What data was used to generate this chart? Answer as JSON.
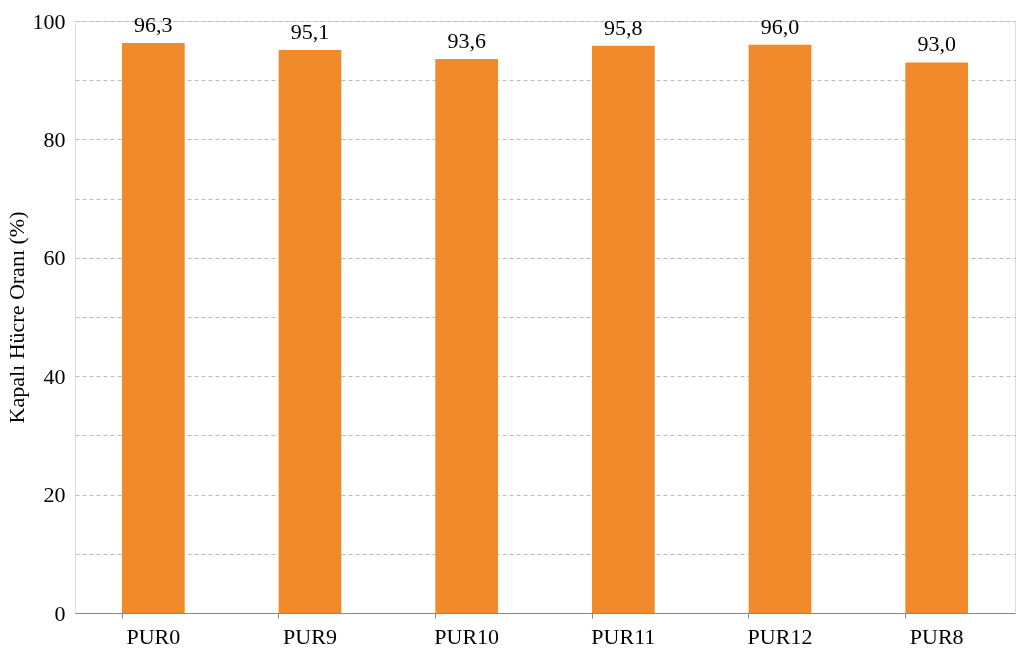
{
  "chart_data": {
    "type": "bar",
    "ylabel": "Kapalı Hücre Oranı (%)",
    "categories": [
      "PUR0",
      "PUR9",
      "PUR10",
      "PUR11",
      "PUR12",
      "PUR8"
    ],
    "values": [
      96.3,
      95.1,
      93.6,
      95.8,
      96.0,
      93.0
    ],
    "value_labels": [
      "96,3",
      "95,1",
      "93,6",
      "95,8",
      "96,0",
      "93,0"
    ],
    "color": "#f18a2a",
    "ylim": [
      0,
      100
    ],
    "yticks": [
      0,
      {
        "value": 10,
        "label": null
      },
      20,
      {
        "value": 30,
        "label": null
      },
      40,
      {
        "value": 50,
        "label": null
      },
      60,
      {
        "value": 70,
        "label": null
      },
      80,
      {
        "value": 90,
        "label": null
      },
      100
    ],
    "grid": "y"
  }
}
